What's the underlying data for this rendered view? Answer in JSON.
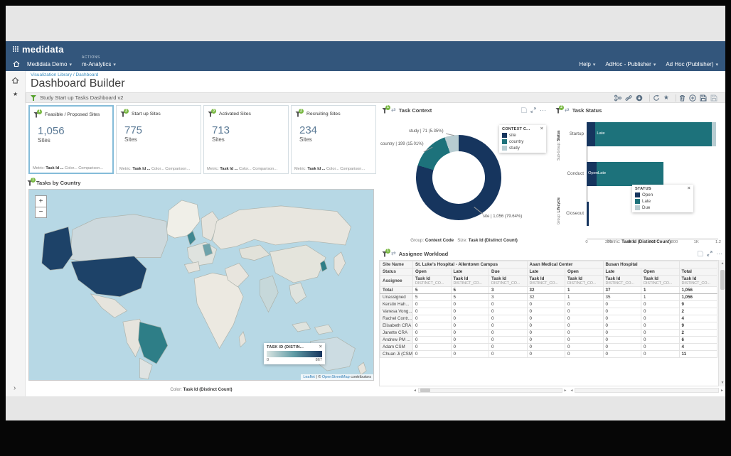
{
  "palette": {
    "header_navy": "#33567c",
    "accent_dark": "#16355e",
    "accent_teal": "#1d727b",
    "accent_light": "#b7ccd1",
    "map_high": "#1d4268",
    "map_medium": "#2e7e87",
    "map_low": "#ccdade",
    "badge_green": "#79b843",
    "selected_card_border": "#85bcd9",
    "link_blue": "#2e7cb5"
  },
  "app": {
    "logo_text": "medidata",
    "nav": {
      "menu1": "Medidata Demo",
      "actions_overline": "ACTIONS",
      "menu2": "m-Analytics",
      "right1": "Help",
      "right2": "AdHoc - Publisher",
      "right3": "Ad Hoc (Publisher)"
    },
    "breadcrumb": "Visualization Library / Dashboard",
    "page_title": "Dashboard Builder",
    "filter_label": "Study Start up Tasks Dashboard v2",
    "toolbar_icon_names": [
      "share-icon",
      "link-icon",
      "download-icon",
      "refresh-icon",
      "star-icon",
      "trash-icon",
      "add-icon",
      "save-as-icon",
      "save-icon"
    ]
  },
  "kpi_footer": {
    "metric_label": "Metric:",
    "metric_value": "Task Id ...",
    "color_value": "Color...",
    "comparison_value": "Comparison..."
  },
  "kpi_cards": [
    {
      "badge": "1",
      "title": "Feasible / Proposed Sites",
      "value": "1,056",
      "unit": "Sites",
      "selected": true
    },
    {
      "badge": "2",
      "title": "Start up Sites",
      "value": "775",
      "unit": "Sites",
      "selected": false
    },
    {
      "badge": "3",
      "title": "Activated Sites",
      "value": "713",
      "unit": "Sites",
      "selected": false
    },
    {
      "badge": "2",
      "title": "Recruiting Sites",
      "value": "234",
      "unit": "Sites",
      "selected": false
    }
  ],
  "chart_data": [
    {
      "id": "task_context",
      "type": "pie",
      "donut": true,
      "title": "Task Context",
      "filter_badge": "1",
      "slices": [
        {
          "label": "site",
          "value": 1056,
          "pct": 79.64,
          "display": "site | 1,056 (79.64%)",
          "color": "#16355e"
        },
        {
          "label": "country",
          "value": 199,
          "pct": 15.01,
          "display": "country | 199 (15.01%)",
          "color": "#1d727b"
        },
        {
          "label": "study",
          "value": 71,
          "pct": 5.35,
          "display": "study | 71 (5.35%)",
          "color": "#b7ccd1"
        }
      ],
      "legend": {
        "title": "CONTEXT C...",
        "position": "top-right"
      },
      "footer": {
        "group_label": "Group:",
        "group_value": "Context Code",
        "size_label": "Size:",
        "size_value": "Task Id (Distinct Count)"
      }
    },
    {
      "id": "task_status",
      "type": "bar",
      "orientation": "horizontal",
      "title": "Task Status",
      "filter_badge": "2",
      "categories": [
        "Startup",
        "Conduct",
        "Closeout"
      ],
      "series": [
        {
          "name": "Open",
          "color": "#16355e",
          "values": [
            80,
            90,
            20
          ]
        },
        {
          "name": "Late",
          "color": "#1d727b",
          "values": [
            1060,
            610,
            0
          ]
        },
        {
          "name": "Due",
          "color": "#b7ccd1",
          "values": [
            40,
            0,
            0
          ]
        }
      ],
      "segment_labels": [
        [
          "",
          "Late",
          ""
        ],
        [
          "Open",
          "Late",
          ""
        ],
        [
          "",
          "",
          ""
        ]
      ],
      "xlim": [
        0,
        1200
      ],
      "xticks": [
        {
          "v": 0,
          "label": "0"
        },
        {
          "v": 200,
          "label": "200"
        },
        {
          "v": 400,
          "label": "400"
        },
        {
          "v": 600,
          "label": "600"
        },
        {
          "v": 800,
          "label": "800"
        },
        {
          "v": 1000,
          "label": "1K"
        },
        {
          "v": 1200,
          "label": "1.2"
        }
      ],
      "axis_left_top_label": "Sub-Group:",
      "axis_left_top_value": "Status",
      "axis_left_bottom_label": "Group:",
      "axis_left_bottom_value": "Lifecycle",
      "legend": {
        "title": "STATUS",
        "position": "bottom-right"
      },
      "footer": {
        "metric_label": "Metric:",
        "metric_value": "Task Id (Distinct Count)"
      }
    },
    {
      "id": "tasks_by_country",
      "type": "heatmap",
      "title": "Tasks by Country",
      "filter_badge": "1",
      "legend": {
        "title": "TASK ID (DISTIN...",
        "min": "0",
        "max": "867"
      },
      "color_scale": [
        "#d9e4e2",
        "#5e9aa4",
        "#16355e"
      ],
      "zoom_in": "+",
      "zoom_out": "−",
      "attribution": {
        "link1": "Leaflet",
        "sep": " | © ",
        "link2": "OpenStreetMap",
        "suffix": " contributors"
      },
      "footer": {
        "color_label": "Color:",
        "color_value": "Task Id (Distinct Count)"
      },
      "country_shading": [
        {
          "country": "United States",
          "shade": "high"
        },
        {
          "country": "Brazil",
          "shade": "medium"
        },
        {
          "country": "United Kingdom",
          "shade": "medium"
        },
        {
          "country": "South Korea",
          "shade": "medium"
        },
        {
          "country": "Canada",
          "shade": "low"
        },
        {
          "country": "Australia",
          "shade": "low"
        },
        {
          "country": "India",
          "shade": "low"
        }
      ]
    },
    {
      "id": "assignee_workload",
      "type": "table",
      "title": "Assignee Workload",
      "filter_badge": "1",
      "site_name_label": "Site Name",
      "status_label": "Status",
      "assignee_label": "Assignee",
      "metric_label": "Task Id",
      "metric_sub": "DISTINCT_CO...",
      "site_groups": [
        {
          "name": "St. Luke's Hospital - Allentown Campus",
          "statuses": [
            "Open",
            "Late",
            "Due"
          ]
        },
        {
          "name": "Asan Medical Center",
          "statuses": [
            "Late",
            "Open"
          ]
        },
        {
          "name": "Busan Hospital",
          "statuses": [
            "Late",
            "Open"
          ]
        },
        {
          "name": "",
          "statuses": [
            "Total"
          ]
        }
      ],
      "rows": [
        {
          "name": "Total",
          "bold": true,
          "values": [
            "5",
            "5",
            "3",
            "32",
            "1",
            "37",
            "1",
            "1,056"
          ]
        },
        {
          "name": "Unassigned",
          "bold": false,
          "values": [
            "5",
            "5",
            "3",
            "32",
            "1",
            "35",
            "1",
            "1,056"
          ]
        },
        {
          "name": "Kerstin Hah...",
          "bold": false,
          "values": [
            "0",
            "0",
            "0",
            "0",
            "0",
            "0",
            "0",
            "9"
          ]
        },
        {
          "name": "Vanesa Vong...",
          "bold": false,
          "values": [
            "0",
            "0",
            "0",
            "0",
            "0",
            "0",
            "0",
            "2"
          ]
        },
        {
          "name": "Rachel Contr...",
          "bold": false,
          "values": [
            "0",
            "0",
            "0",
            "0",
            "0",
            "0",
            "0",
            "4"
          ]
        },
        {
          "name": "Elisabeth CRA",
          "bold": false,
          "values": [
            "0",
            "0",
            "0",
            "0",
            "0",
            "0",
            "0",
            "9"
          ]
        },
        {
          "name": "Janette CRA",
          "bold": false,
          "values": [
            "0",
            "0",
            "0",
            "0",
            "0",
            "0",
            "0",
            "2"
          ]
        },
        {
          "name": "Andrew PM ...",
          "bold": false,
          "values": [
            "0",
            "0",
            "0",
            "0",
            "0",
            "0",
            "0",
            "6"
          ]
        },
        {
          "name": "Adam CSM",
          "bold": false,
          "values": [
            "0",
            "0",
            "0",
            "0",
            "0",
            "0",
            "0",
            "4"
          ]
        },
        {
          "name": "Chuan Ji (CSM)",
          "bold": false,
          "values": [
            "0",
            "0",
            "0",
            "0",
            "0",
            "0",
            "0",
            "11"
          ]
        }
      ]
    }
  ]
}
